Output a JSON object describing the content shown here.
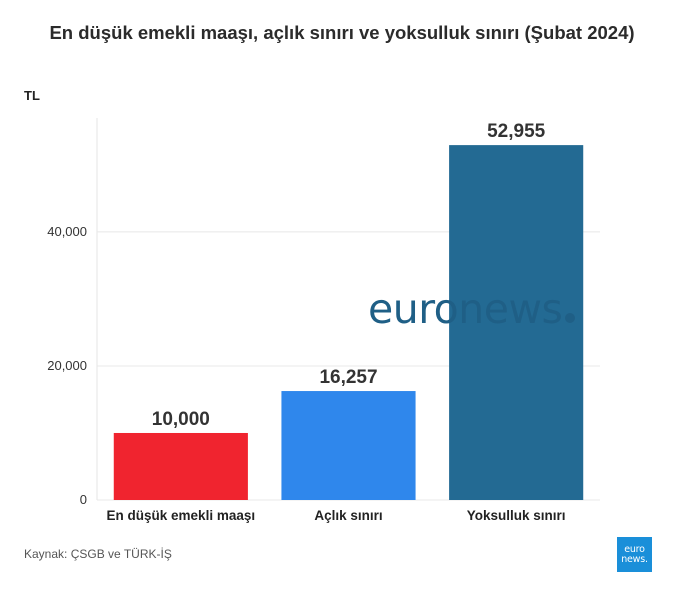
{
  "chart_data": {
    "type": "bar",
    "title": "En düşük emekli maaşı, açlık sınırı ve yoksulluk sınırı (Şubat 2024)",
    "ylabel": "TL",
    "categories": [
      "En düşük emekli maaşı",
      "Açlık sınırı",
      "Yoksulluk sınırı"
    ],
    "values": [
      10000,
      16257,
      52955
    ],
    "value_labels": [
      "10,000",
      "16,257",
      "52,955"
    ],
    "bar_colors": [
      "#f0242f",
      "#2f87ec",
      "#236a93"
    ],
    "yticks": [
      0,
      20000,
      40000
    ],
    "ytick_labels": [
      "0",
      "20,000",
      "40,000"
    ],
    "ylim": [
      0,
      57000
    ],
    "grid": true
  },
  "source": "Kaynak: ÇSGB ve TÜRK-İŞ",
  "watermark": {
    "text": "euronews",
    "color": "#1f5f86"
  },
  "logo": {
    "line1": "euro",
    "line2": "news.",
    "color": "#1a8fd9"
  }
}
